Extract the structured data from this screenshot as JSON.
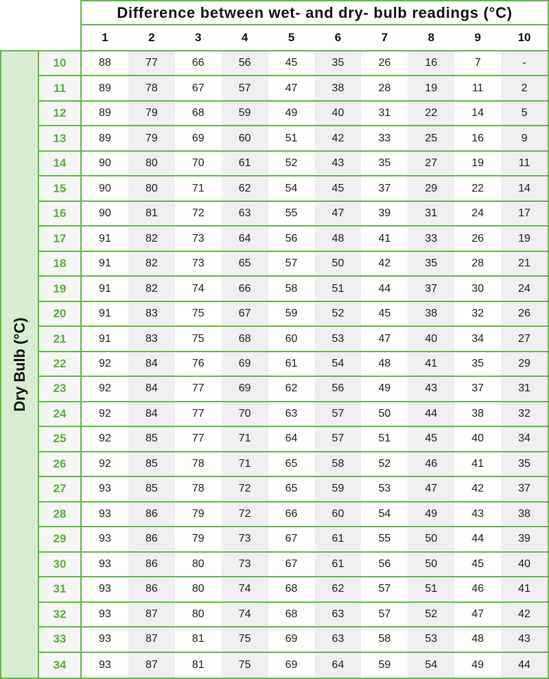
{
  "colors": {
    "grid_line": "#5fb846",
    "row_label_text": "#55b03a",
    "side_fill": "#d9edd2",
    "column_stripe": "#efefef"
  },
  "chart_data": {
    "type": "table",
    "column_axis_label": "Difference between wet- and dry- bulb readings (°C)",
    "row_axis_label": "Dry Bulb (°C)",
    "columns": [
      1,
      2,
      3,
      4,
      5,
      6,
      7,
      8,
      9,
      10
    ],
    "rows": [
      {
        "label": 10,
        "values": [
          88,
          77,
          66,
          56,
          45,
          35,
          26,
          16,
          7,
          "-"
        ]
      },
      {
        "label": 11,
        "values": [
          89,
          78,
          67,
          57,
          47,
          38,
          28,
          19,
          11,
          2
        ]
      },
      {
        "label": 12,
        "values": [
          89,
          79,
          68,
          59,
          49,
          40,
          31,
          22,
          14,
          5
        ]
      },
      {
        "label": 13,
        "values": [
          89,
          79,
          69,
          60,
          51,
          42,
          33,
          25,
          16,
          9
        ]
      },
      {
        "label": 14,
        "values": [
          90,
          80,
          70,
          61,
          52,
          43,
          35,
          27,
          19,
          11
        ]
      },
      {
        "label": 15,
        "values": [
          90,
          80,
          71,
          62,
          54,
          45,
          37,
          29,
          22,
          14
        ]
      },
      {
        "label": 16,
        "values": [
          90,
          81,
          72,
          63,
          55,
          47,
          39,
          31,
          24,
          17
        ]
      },
      {
        "label": 17,
        "values": [
          91,
          82,
          73,
          64,
          56,
          48,
          41,
          33,
          26,
          19
        ]
      },
      {
        "label": 18,
        "values": [
          91,
          82,
          73,
          65,
          57,
          50,
          42,
          35,
          28,
          21
        ]
      },
      {
        "label": 19,
        "values": [
          91,
          82,
          74,
          66,
          58,
          51,
          44,
          37,
          30,
          24
        ]
      },
      {
        "label": 20,
        "values": [
          91,
          83,
          75,
          67,
          59,
          52,
          45,
          38,
          32,
          26
        ]
      },
      {
        "label": 21,
        "values": [
          91,
          83,
          75,
          68,
          60,
          53,
          47,
          40,
          34,
          27
        ]
      },
      {
        "label": 22,
        "values": [
          92,
          84,
          76,
          69,
          61,
          54,
          48,
          41,
          35,
          29
        ]
      },
      {
        "label": 23,
        "values": [
          92,
          84,
          77,
          69,
          62,
          56,
          49,
          43,
          37,
          31
        ]
      },
      {
        "label": 24,
        "values": [
          92,
          84,
          77,
          70,
          63,
          57,
          50,
          44,
          38,
          32
        ]
      },
      {
        "label": 25,
        "values": [
          92,
          85,
          77,
          71,
          64,
          57,
          51,
          45,
          40,
          34
        ]
      },
      {
        "label": 26,
        "values": [
          92,
          85,
          78,
          71,
          65,
          58,
          52,
          46,
          41,
          35
        ]
      },
      {
        "label": 27,
        "values": [
          93,
          85,
          78,
          72,
          65,
          59,
          53,
          47,
          42,
          37
        ]
      },
      {
        "label": 28,
        "values": [
          93,
          86,
          79,
          72,
          66,
          60,
          54,
          49,
          43,
          38
        ]
      },
      {
        "label": 29,
        "values": [
          93,
          86,
          79,
          73,
          67,
          61,
          55,
          50,
          44,
          39
        ]
      },
      {
        "label": 30,
        "values": [
          93,
          86,
          80,
          73,
          67,
          61,
          56,
          50,
          45,
          40
        ]
      },
      {
        "label": 31,
        "values": [
          93,
          86,
          80,
          74,
          68,
          62,
          57,
          51,
          46,
          41
        ]
      },
      {
        "label": 32,
        "values": [
          93,
          87,
          80,
          74,
          68,
          63,
          57,
          52,
          47,
          42
        ]
      },
      {
        "label": 33,
        "values": [
          93,
          87,
          81,
          75,
          69,
          63,
          58,
          53,
          48,
          43
        ]
      },
      {
        "label": 34,
        "values": [
          93,
          87,
          81,
          75,
          69,
          64,
          59,
          54,
          49,
          44
        ]
      }
    ]
  }
}
